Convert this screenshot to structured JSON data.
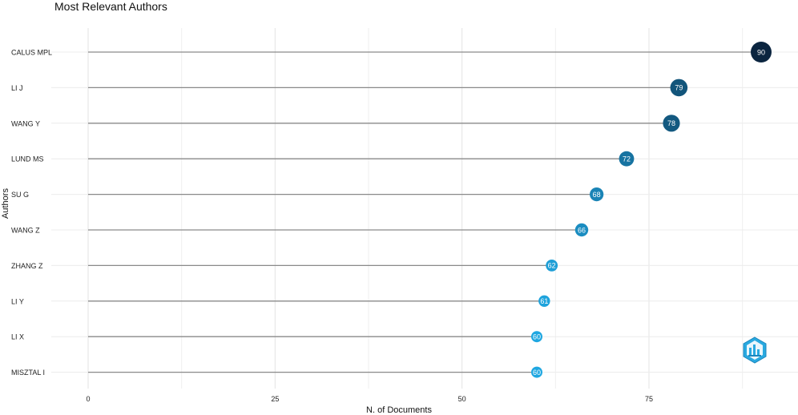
{
  "chart_data": {
    "type": "lollipop",
    "title": "Most Relevant Authors",
    "xlabel": "N. of Documents",
    "ylabel": "Authors",
    "xlim": [
      -4,
      94
    ],
    "xticks": [
      0,
      25,
      50,
      75
    ],
    "grid": true,
    "categories": [
      "CALUS MPL",
      "LI J",
      "WANG Y",
      "LUND MS",
      "SU G",
      "WANG Z",
      "ZHANG Z",
      "LI Y",
      "LI X",
      "MISZTAL I"
    ],
    "values": [
      90,
      79,
      78,
      72,
      68,
      66,
      62,
      61,
      60,
      60
    ],
    "color_scale": {
      "low": "#1fa7e1",
      "high": "#0b2540"
    }
  },
  "logo": {
    "icon": "bibliometrix-logo-icon"
  }
}
